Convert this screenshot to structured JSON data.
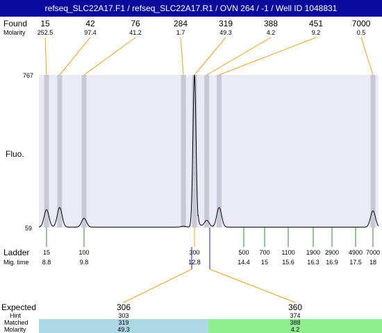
{
  "title": "refseq_SLC22A17.F1 / refseq_SLC22A17.R1 / OVN 264 / -1 / Well ID 1048831",
  "labels": {
    "found": "Found",
    "molarity": "Molarity",
    "fluo": "Fluo.",
    "ladder": "Ladder",
    "mig_time": "Mig. time",
    "expected": "Expected",
    "hint": "Hint",
    "matched": "Matched",
    "molarity_bottom": "Molarity"
  },
  "colors": {
    "title_bg": "#0b0b9b",
    "plot_bg": "#ebebf8",
    "band": "#c8c8d6",
    "orange": "#f0a020",
    "green": "#2e8b2e",
    "blue": "#1a1acc",
    "matched_blue": "#add8e6",
    "matched_green": "#90ee90"
  },
  "chart_data": {
    "type": "line",
    "y_axis": {
      "max_label": "767",
      "min_label": "59",
      "ylim": [
        59,
        767
      ]
    },
    "found_peaks": [
      {
        "size": "15",
        "molarity": "252.5",
        "time": 8.8,
        "height": 140
      },
      {
        "size": "42",
        "molarity": "97.4",
        "time": 9.15,
        "height": 150
      },
      {
        "size": "76",
        "molarity": "41.2",
        "time": 9.8,
        "height": 100
      },
      {
        "size": "284",
        "molarity": "1.7",
        "time": 12.5,
        "height": 63
      },
      {
        "size": "319",
        "molarity": "49.3",
        "time": 12.8,
        "height": 767
      },
      {
        "size": "388",
        "molarity": "4.2",
        "time": 13.2,
        "height": 90
      },
      {
        "size": "451",
        "molarity": "9.2",
        "time": 13.6,
        "height": 150
      },
      {
        "size": "7000",
        "molarity": "0.5",
        "time": 18.0,
        "height": 135
      }
    ],
    "ladder": [
      {
        "size": "15",
        "time": "8.8"
      },
      {
        "size": "100",
        "time": "9.8"
      },
      {
        "size": "300",
        "time": "12.8"
      },
      {
        "size": "500",
        "time": "14.4"
      },
      {
        "size": "700",
        "time": "15"
      },
      {
        "size": "1100",
        "time": "15.6"
      },
      {
        "size": "1900",
        "time": "16.3"
      },
      {
        "size": "2900",
        "time": "16.9"
      },
      {
        "size": "4900",
        "time": "17.5"
      },
      {
        "size": "7000",
        "time": "18"
      }
    ],
    "expected": [
      {
        "expected": "306",
        "hint": "303",
        "matched": "319",
        "molarity": "49.3"
      },
      {
        "expected": "360",
        "hint": "374",
        "matched": "388",
        "molarity": "4.2"
      }
    ]
  }
}
